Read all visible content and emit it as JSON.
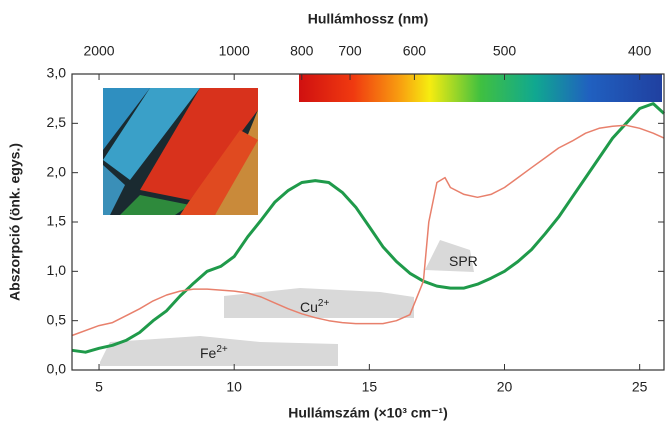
{
  "chart_data": {
    "type": "line",
    "title": "Hullámhossz (nm)",
    "x_label": "Hullámszám (×10³ cm⁻¹)",
    "y_label": "Abszorpció (önk. egys.)",
    "xlim": [
      4,
      25.9
    ],
    "ylim": [
      0,
      3
    ],
    "xticks": [
      5,
      10,
      15,
      20,
      25
    ],
    "yticks": [
      {
        "value": 0,
        "label": "0,0"
      },
      {
        "value": 0.5,
        "label": "0,5"
      },
      {
        "value": 1,
        "label": "1,0"
      },
      {
        "value": 1.5,
        "label": "1,5"
      },
      {
        "value": 2,
        "label": "2,0"
      },
      {
        "value": 2.5,
        "label": "2,5"
      },
      {
        "value": 3,
        "label": "3,0"
      }
    ],
    "x2ticks": [
      2000,
      1000,
      800,
      700,
      600,
      500,
      400
    ],
    "annotations": [
      {
        "text": "SPR"
      },
      {
        "text": "Cu",
        "sup": "2+"
      },
      {
        "text": "Fe",
        "sup": "2+"
      }
    ],
    "series": [
      {
        "color": "#1f9a4a",
        "x": [
          4,
          4.5,
          5,
          5.5,
          6,
          6.5,
          7,
          7.5,
          8,
          8.5,
          9,
          9.5,
          10,
          10.5,
          11,
          11.5,
          12,
          12.5,
          13,
          13.5,
          14,
          14.5,
          15,
          15.5,
          16,
          16.5,
          17,
          17.5,
          18,
          18.5,
          19,
          19.5,
          20,
          20.5,
          21,
          21.5,
          22,
          22.5,
          23,
          23.5,
          24,
          24.5,
          25,
          25.5,
          25.9
        ],
        "values": [
          0.2,
          0.18,
          0.22,
          0.25,
          0.3,
          0.38,
          0.5,
          0.6,
          0.75,
          0.88,
          1.0,
          1.05,
          1.15,
          1.35,
          1.52,
          1.7,
          1.82,
          1.9,
          1.92,
          1.9,
          1.8,
          1.65,
          1.45,
          1.25,
          1.1,
          0.98,
          0.9,
          0.85,
          0.83,
          0.83,
          0.87,
          0.93,
          1.0,
          1.1,
          1.22,
          1.38,
          1.55,
          1.75,
          1.95,
          2.15,
          2.35,
          2.5,
          2.65,
          2.7,
          2.6
        ]
      },
      {
        "color": "#e8806c",
        "x": [
          4,
          5,
          5.5,
          6,
          6.5,
          7,
          7.5,
          8,
          8.5,
          9,
          9.5,
          10,
          10.5,
          11,
          11.5,
          12,
          12.5,
          13,
          13.5,
          14,
          14.5,
          15,
          15.5,
          16,
          16.5,
          17,
          17.2,
          17.5,
          17.8,
          18,
          18.5,
          19,
          19.5,
          20,
          20.5,
          21,
          21.5,
          22,
          22.5,
          23,
          23.5,
          24,
          24.5,
          25,
          25.5,
          25.9
        ],
        "values": [
          0.35,
          0.45,
          0.48,
          0.55,
          0.62,
          0.7,
          0.76,
          0.8,
          0.82,
          0.82,
          0.81,
          0.8,
          0.78,
          0.74,
          0.68,
          0.62,
          0.57,
          0.53,
          0.5,
          0.48,
          0.47,
          0.47,
          0.47,
          0.5,
          0.56,
          0.9,
          1.5,
          1.9,
          1.95,
          1.85,
          1.78,
          1.75,
          1.78,
          1.85,
          1.95,
          2.05,
          2.15,
          2.25,
          2.32,
          2.4,
          2.45,
          2.47,
          2.48,
          2.45,
          2.4,
          2.35
        ]
      }
    ]
  }
}
